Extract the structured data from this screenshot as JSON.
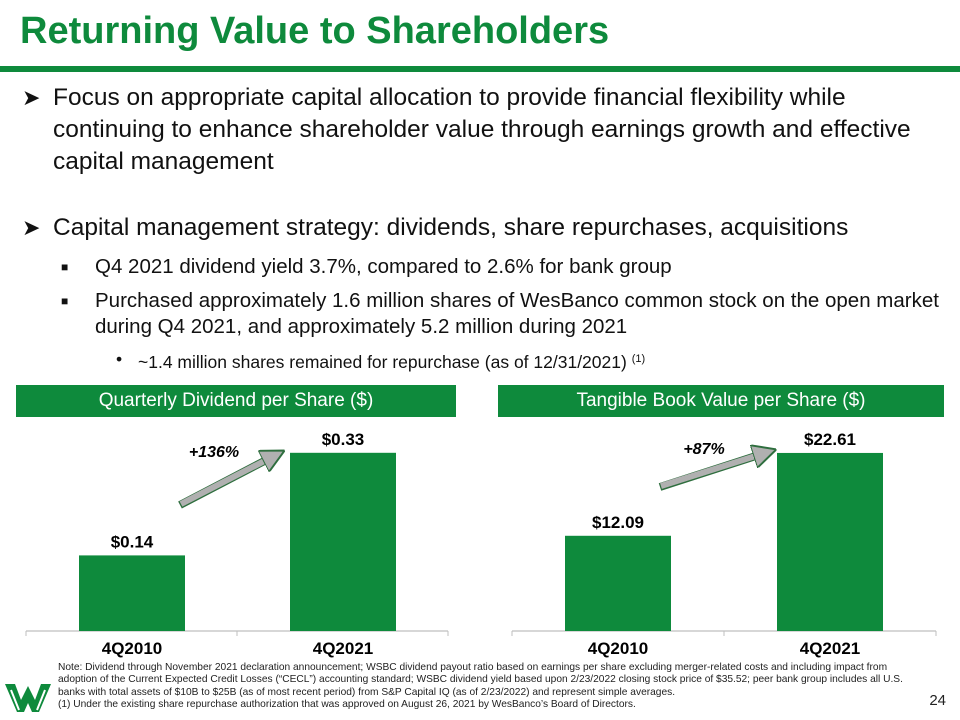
{
  "title": "Returning Value to Shareholders",
  "bullets": {
    "b1": "Focus on appropriate capital allocation to provide financial flexibility while continuing to enhance shareholder value through earnings growth and effective capital management",
    "b2": "Capital management strategy:  dividends, share repurchases, acquisitions",
    "b2a": "Q4 2021 dividend yield 3.7%, compared to 2.6% for bank group",
    "b2b": "Purchased approximately 1.6 million shares of WesBanco common stock on the open market during Q4 2021, and approximately 5.2 million during 2021",
    "b2b_i": "~1.4 million shares remained for repurchase (as of 12/31/2021)",
    "b2b_i_note": "(1)"
  },
  "colors": {
    "brand_green": "#0e8a3c",
    "arrow_gray": "#b0b0b0"
  },
  "chart_data": [
    {
      "type": "bar",
      "title": "Quarterly Dividend per Share ($)",
      "categories": [
        "4Q2010",
        "4Q2021"
      ],
      "values": [
        0.14,
        0.33
      ],
      "labels": [
        "$0.14",
        "$0.33"
      ],
      "growth_label": "+136%",
      "ylim": [
        0,
        0.35
      ]
    },
    {
      "type": "bar",
      "title": "Tangible Book Value per Share ($)",
      "categories": [
        "4Q2010",
        "4Q2021"
      ],
      "values": [
        12.09,
        22.61
      ],
      "labels": [
        "$12.09",
        "$22.61"
      ],
      "growth_label": "+87%",
      "ylim": [
        0,
        24
      ]
    }
  ],
  "note": "Note: Dividend through November 2021 declaration announcement; WSBC dividend payout ratio based on earnings per share excluding merger-related costs and including impact from adoption of the Current Expected Credit Losses (“CECL”) accounting standard; WSBC dividend yield based upon 2/23/2022 closing stock price of $35.52; peer bank group includes all U.S. banks with total assets of $10B to $25B (as of most recent period) from S&P Capital IQ (as of 2/23/2022) and represent simple averages.",
  "footnote": "(1) Under the existing share repurchase authorization that was approved on August 26, 2021 by WesBanco’s Board of Directors.",
  "page_number": "24"
}
